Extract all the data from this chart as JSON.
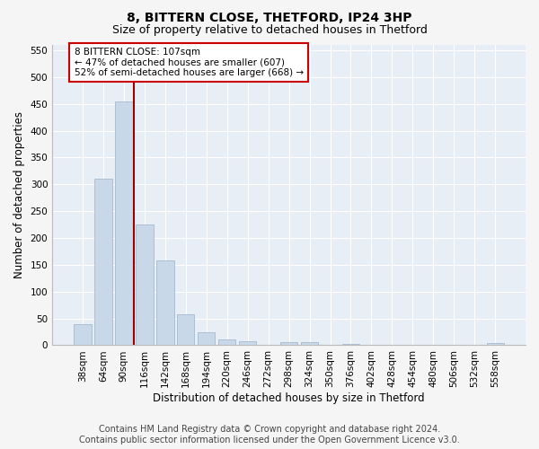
{
  "title1": "8, BITTERN CLOSE, THETFORD, IP24 3HP",
  "title2": "Size of property relative to detached houses in Thetford",
  "xlabel": "Distribution of detached houses by size in Thetford",
  "ylabel": "Number of detached properties",
  "categories": [
    "38sqm",
    "64sqm",
    "90sqm",
    "116sqm",
    "142sqm",
    "168sqm",
    "194sqm",
    "220sqm",
    "246sqm",
    "272sqm",
    "298sqm",
    "324sqm",
    "350sqm",
    "376sqm",
    "402sqm",
    "428sqm",
    "454sqm",
    "480sqm",
    "506sqm",
    "532sqm",
    "558sqm"
  ],
  "values": [
    40,
    310,
    455,
    225,
    158,
    57,
    25,
    11,
    8,
    0,
    5,
    6,
    0,
    3,
    0,
    0,
    0,
    0,
    0,
    0,
    4
  ],
  "bar_color": "#c8d8e8",
  "bar_edge_color": "#9ab0c8",
  "vline_color": "#990000",
  "annotation_text": "8 BITTERN CLOSE: 107sqm\n← 47% of detached houses are smaller (607)\n52% of semi-detached houses are larger (668) →",
  "annotation_box_color": "#ffffff",
  "annotation_box_edge": "#cc0000",
  "ylim": [
    0,
    560
  ],
  "yticks": [
    0,
    50,
    100,
    150,
    200,
    250,
    300,
    350,
    400,
    450,
    500,
    550
  ],
  "footer1": "Contains HM Land Registry data © Crown copyright and database right 2024.",
  "footer2": "Contains public sector information licensed under the Open Government Licence v3.0.",
  "bg_color": "#f5f5f5",
  "plot_bg_color": "#e8eef5",
  "grid_color": "#ffffff",
  "title1_fontsize": 10,
  "title2_fontsize": 9,
  "xlabel_fontsize": 8.5,
  "ylabel_fontsize": 8.5,
  "tick_fontsize": 7.5,
  "footer_fontsize": 7,
  "vline_pos": 2.5
}
